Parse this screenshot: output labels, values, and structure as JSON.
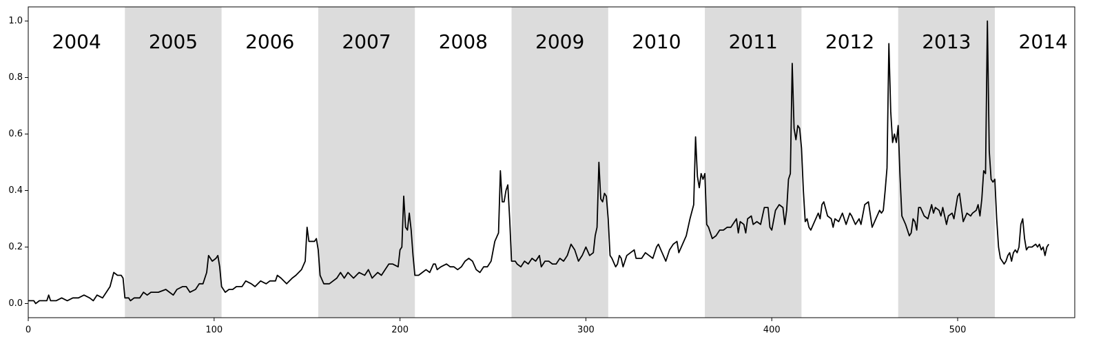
{
  "chart_data": {
    "type": "line",
    "color": "#000000",
    "band_color": "#dcdcdc",
    "xlim": [
      0,
      563
    ],
    "ylim": [
      -0.05,
      1.05
    ],
    "xticks": [
      0,
      100,
      200,
      300,
      400,
      500
    ],
    "yticks": [
      {
        "value": 0,
        "label": "0.0"
      },
      0.2,
      0.4,
      0.6,
      0.8,
      {
        "value": 1,
        "label": "1.0"
      }
    ],
    "periods": [
      {
        "label": "2004",
        "start": 0,
        "end": 52,
        "shaded": false
      },
      {
        "label": "2005",
        "start": 52,
        "end": 104,
        "shaded": true
      },
      {
        "label": "2006",
        "start": 104,
        "end": 156,
        "shaded": false
      },
      {
        "label": "2007",
        "start": 156,
        "end": 208,
        "shaded": true
      },
      {
        "label": "2008",
        "start": 208,
        "end": 260,
        "shaded": false
      },
      {
        "label": "2009",
        "start": 260,
        "end": 312,
        "shaded": true
      },
      {
        "label": "2010",
        "start": 312,
        "end": 364,
        "shaded": false
      },
      {
        "label": "2011",
        "start": 364,
        "end": 416,
        "shaded": true
      },
      {
        "label": "2012",
        "start": 416,
        "end": 468,
        "shaded": false
      },
      {
        "label": "2013",
        "start": 468,
        "end": 520,
        "shaded": true
      },
      {
        "label": "2014",
        "start": 520,
        "end": 572,
        "shaded": false
      }
    ],
    "x": [
      0,
      3,
      4,
      6,
      10,
      11,
      12,
      15,
      18,
      21,
      24,
      27,
      30,
      33,
      35,
      37,
      40,
      42,
      44,
      46,
      48,
      50,
      51,
      52,
      54,
      55,
      57,
      60,
      62,
      64,
      66,
      70,
      74,
      76,
      78,
      80,
      83,
      85,
      87,
      90,
      92,
      94,
      96,
      97,
      99,
      101,
      102,
      103,
      104,
      106,
      108,
      110,
      112,
      115,
      117,
      120,
      122,
      125,
      128,
      130,
      133,
      134,
      136,
      139,
      142,
      144,
      147,
      149,
      150,
      151,
      154,
      155,
      156,
      157,
      159,
      162,
      164,
      166,
      168,
      170,
      172,
      175,
      178,
      181,
      183,
      185,
      188,
      190,
      192,
      194,
      196,
      199,
      200,
      201,
      202,
      203,
      204,
      205,
      206,
      207,
      208,
      210,
      212,
      214,
      216,
      218,
      219,
      220,
      222,
      225,
      227,
      229,
      231,
      233,
      235,
      237,
      239,
      241,
      243,
      245,
      247,
      249,
      251,
      253,
      254,
      255,
      256,
      257,
      258,
      259,
      260,
      262,
      263,
      265,
      267,
      269,
      271,
      273,
      275,
      276,
      278,
      280,
      282,
      284,
      286,
      288,
      290,
      292,
      294,
      296,
      298,
      300,
      302,
      304,
      305,
      306,
      307,
      308,
      309,
      310,
      311,
      312,
      313,
      314,
      316,
      317,
      318,
      319,
      320,
      322,
      324,
      326,
      327,
      330,
      332,
      334,
      336,
      338,
      339,
      341,
      343,
      345,
      347,
      349,
      350,
      352,
      354,
      356,
      358,
      359,
      360,
      361,
      362,
      363,
      364,
      365,
      366,
      368,
      370,
      372,
      374,
      376,
      378,
      380,
      381,
      382,
      383,
      385,
      386,
      387,
      389,
      390,
      392,
      394,
      396,
      398,
      399,
      400,
      402,
      404,
      406,
      407,
      408,
      409,
      410,
      411,
      412,
      413,
      414,
      415,
      416,
      417,
      418,
      419,
      420,
      421,
      423,
      425,
      426,
      427,
      428,
      430,
      432,
      433,
      434,
      436,
      438,
      440,
      442,
      443,
      445,
      447,
      448,
      450,
      452,
      454,
      456,
      458,
      459,
      460,
      461,
      462,
      463,
      464,
      465,
      466,
      467,
      468,
      469,
      470,
      472,
      473,
      474,
      475,
      476,
      477,
      478,
      479,
      480,
      482,
      484,
      486,
      487,
      488,
      490,
      491,
      492,
      494,
      495,
      497,
      498,
      500,
      501,
      503,
      505,
      507,
      508,
      510,
      511,
      512,
      513,
      514,
      515,
      516,
      517,
      518,
      519,
      520,
      521,
      522,
      523,
      524,
      525,
      526,
      527,
      528,
      529,
      530,
      531,
      532,
      533,
      534,
      535,
      536,
      537,
      538,
      540,
      542,
      543,
      544,
      545,
      546,
      547,
      548,
      549
    ],
    "values": [
      0.01,
      0.01,
      0,
      0.01,
      0.01,
      0.03,
      0.01,
      0.01,
      0.02,
      0.01,
      0.02,
      0.02,
      0.03,
      0.02,
      0.01,
      0.03,
      0.02,
      0.04,
      0.06,
      0.11,
      0.1,
      0.1,
      0.09,
      0.02,
      0.02,
      0.01,
      0.02,
      0.02,
      0.04,
      0.03,
      0.04,
      0.04,
      0.05,
      0.04,
      0.03,
      0.05,
      0.06,
      0.06,
      0.04,
      0.05,
      0.07,
      0.07,
      0.11,
      0.17,
      0.15,
      0.16,
      0.17,
      0.13,
      0.06,
      0.04,
      0.05,
      0.05,
      0.06,
      0.06,
      0.08,
      0.07,
      0.06,
      0.08,
      0.07,
      0.08,
      0.08,
      0.1,
      0.09,
      0.07,
      0.09,
      0.1,
      0.12,
      0.15,
      0.27,
      0.22,
      0.22,
      0.23,
      0.19,
      0.1,
      0.07,
      0.07,
      0.08,
      0.09,
      0.11,
      0.09,
      0.11,
      0.09,
      0.11,
      0.1,
      0.12,
      0.09,
      0.11,
      0.1,
      0.12,
      0.14,
      0.14,
      0.13,
      0.19,
      0.2,
      0.38,
      0.27,
      0.26,
      0.32,
      0.26,
      0.17,
      0.1,
      0.1,
      0.11,
      0.12,
      0.11,
      0.14,
      0.14,
      0.12,
      0.13,
      0.14,
      0.13,
      0.13,
      0.12,
      0.13,
      0.15,
      0.16,
      0.15,
      0.12,
      0.11,
      0.13,
      0.13,
      0.15,
      0.22,
      0.25,
      0.47,
      0.36,
      0.36,
      0.4,
      0.42,
      0.3,
      0.15,
      0.15,
      0.14,
      0.13,
      0.15,
      0.14,
      0.16,
      0.15,
      0.17,
      0.13,
      0.15,
      0.15,
      0.14,
      0.14,
      0.16,
      0.15,
      0.17,
      0.21,
      0.19,
      0.15,
      0.17,
      0.2,
      0.17,
      0.18,
      0.24,
      0.27,
      0.5,
      0.37,
      0.36,
      0.39,
      0.38,
      0.3,
      0.17,
      0.16,
      0.13,
      0.14,
      0.17,
      0.16,
      0.13,
      0.17,
      0.18,
      0.19,
      0.16,
      0.16,
      0.18,
      0.17,
      0.16,
      0.2,
      0.21,
      0.18,
      0.15,
      0.19,
      0.21,
      0.22,
      0.18,
      0.21,
      0.24,
      0.3,
      0.35,
      0.59,
      0.45,
      0.41,
      0.46,
      0.44,
      0.46,
      0.28,
      0.27,
      0.23,
      0.24,
      0.26,
      0.26,
      0.27,
      0.27,
      0.29,
      0.3,
      0.25,
      0.29,
      0.28,
      0.25,
      0.3,
      0.31,
      0.28,
      0.29,
      0.28,
      0.34,
      0.34,
      0.27,
      0.26,
      0.33,
      0.35,
      0.34,
      0.28,
      0.33,
      0.44,
      0.46,
      0.85,
      0.62,
      0.58,
      0.63,
      0.62,
      0.55,
      0.4,
      0.29,
      0.3,
      0.27,
      0.26,
      0.29,
      0.32,
      0.3,
      0.35,
      0.36,
      0.31,
      0.3,
      0.27,
      0.3,
      0.29,
      0.32,
      0.28,
      0.32,
      0.31,
      0.28,
      0.3,
      0.28,
      0.35,
      0.36,
      0.27,
      0.3,
      0.33,
      0.32,
      0.33,
      0.4,
      0.48,
      0.92,
      0.68,
      0.57,
      0.6,
      0.57,
      0.63,
      0.45,
      0.31,
      0.28,
      0.26,
      0.24,
      0.25,
      0.3,
      0.29,
      0.26,
      0.34,
      0.34,
      0.31,
      0.3,
      0.35,
      0.32,
      0.34,
      0.33,
      0.31,
      0.34,
      0.28,
      0.31,
      0.32,
      0.3,
      0.38,
      0.39,
      0.29,
      0.32,
      0.31,
      0.32,
      0.33,
      0.35,
      0.31,
      0.37,
      0.47,
      0.46,
      1.0,
      0.54,
      0.44,
      0.43,
      0.44,
      0.3,
      0.2,
      0.16,
      0.15,
      0.14,
      0.15,
      0.17,
      0.18,
      0.15,
      0.18,
      0.19,
      0.18,
      0.2,
      0.28,
      0.3,
      0.23,
      0.19,
      0.2,
      0.2,
      0.21,
      0.2,
      0.21,
      0.19,
      0.2,
      0.17,
      0.2,
      0.21
    ]
  }
}
